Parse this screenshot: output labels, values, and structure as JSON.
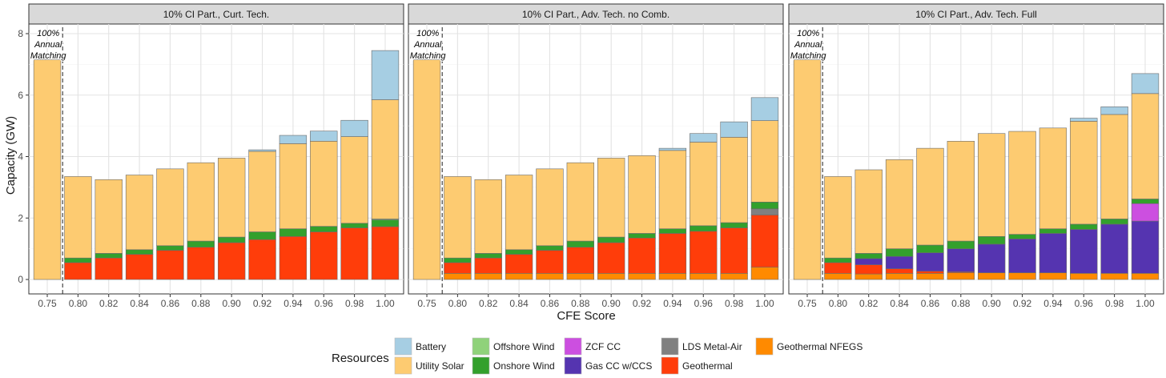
{
  "chart_data": {
    "type": "bar",
    "stacked": true,
    "xlabel": "CFE Score",
    "ylabel": "Capacity (GW)",
    "ylim": [
      0,
      8.6
    ],
    "yticks": [
      "0",
      "2",
      "4",
      "6",
      "8"
    ],
    "categories": [
      "0.75",
      "0.80",
      "0.82",
      "0.84",
      "0.86",
      "0.88",
      "0.90",
      "0.92",
      "0.94",
      "0.96",
      "0.98",
      "1.00"
    ],
    "annotation": [
      "100%",
      "Annual",
      "Matching"
    ],
    "legend": {
      "title": "Resources",
      "items": [
        {
          "name": "Battery",
          "color": "#a6cee3"
        },
        {
          "name": "Utility Solar",
          "color": "#fdcb71"
        },
        {
          "name": "Offshore Wind",
          "color": "#8fd27a"
        },
        {
          "name": "Onshore Wind",
          "color": "#33a02c"
        },
        {
          "name": "ZCF CC",
          "color": "#cc4fe0"
        },
        {
          "name": "Gas CC w/CCS",
          "color": "#5534b0"
        },
        {
          "name": "LDS Metal-Air",
          "color": "#808080"
        },
        {
          "name": "Geothermal",
          "color": "#ff3d0a"
        },
        {
          "name": "Geothermal NFEGS",
          "color": "#ff8a00"
        }
      ]
    },
    "panels": [
      {
        "title": "10% CI Part., Curt. Tech.",
        "stacks": [
          [
            [
              "Utility Solar",
              7.15
            ]
          ],
          [
            [
              "Geothermal",
              0.55
            ],
            [
              "Onshore Wind",
              0.15
            ],
            [
              "Utility Solar",
              2.65
            ]
          ],
          [
            [
              "Geothermal",
              0.7
            ],
            [
              "Onshore Wind",
              0.15
            ],
            [
              "Utility Solar",
              2.4
            ]
          ],
          [
            [
              "Geothermal",
              0.82
            ],
            [
              "Onshore Wind",
              0.15
            ],
            [
              "Utility Solar",
              2.43
            ]
          ],
          [
            [
              "Geothermal",
              0.95
            ],
            [
              "Onshore Wind",
              0.15
            ],
            [
              "Utility Solar",
              2.5
            ]
          ],
          [
            [
              "Geothermal",
              1.05
            ],
            [
              "Onshore Wind",
              0.2
            ],
            [
              "Utility Solar",
              2.55
            ]
          ],
          [
            [
              "Geothermal",
              1.2
            ],
            [
              "Onshore Wind",
              0.18
            ],
            [
              "Utility Solar",
              2.57
            ]
          ],
          [
            [
              "Geothermal",
              1.3
            ],
            [
              "Onshore Wind",
              0.25
            ],
            [
              "Utility Solar",
              2.62
            ],
            [
              "Battery",
              0.05
            ]
          ],
          [
            [
              "Geothermal",
              1.4
            ],
            [
              "Onshore Wind",
              0.25
            ],
            [
              "Utility Solar",
              2.77
            ],
            [
              "Battery",
              0.27
            ]
          ],
          [
            [
              "Geothermal",
              1.55
            ],
            [
              "Onshore Wind",
              0.18
            ],
            [
              "Utility Solar",
              2.77
            ],
            [
              "Battery",
              0.33
            ]
          ],
          [
            [
              "Geothermal",
              1.68
            ],
            [
              "Onshore Wind",
              0.15
            ],
            [
              "Utility Solar",
              2.82
            ],
            [
              "Battery",
              0.53
            ]
          ],
          [
            [
              "Geothermal",
              1.72
            ],
            [
              "Onshore Wind",
              0.22
            ],
            [
              "Offshore Wind",
              0.03
            ],
            [
              "Utility Solar",
              3.88
            ],
            [
              "Battery",
              1.6
            ]
          ]
        ]
      },
      {
        "title": "10% CI Part., Adv. Tech. no Comb.",
        "stacks": [
          [
            [
              "Utility Solar",
              7.15
            ]
          ],
          [
            [
              "Geothermal NFEGS",
              0.2
            ],
            [
              "Geothermal",
              0.35
            ],
            [
              "Onshore Wind",
              0.15
            ],
            [
              "Utility Solar",
              2.65
            ]
          ],
          [
            [
              "Geothermal NFEGS",
              0.2
            ],
            [
              "Geothermal",
              0.5
            ],
            [
              "Onshore Wind",
              0.15
            ],
            [
              "Utility Solar",
              2.4
            ]
          ],
          [
            [
              "Geothermal NFEGS",
              0.2
            ],
            [
              "Geothermal",
              0.62
            ],
            [
              "Onshore Wind",
              0.15
            ],
            [
              "Utility Solar",
              2.43
            ]
          ],
          [
            [
              "Geothermal NFEGS",
              0.2
            ],
            [
              "Geothermal",
              0.75
            ],
            [
              "Onshore Wind",
              0.15
            ],
            [
              "Utility Solar",
              2.5
            ]
          ],
          [
            [
              "Geothermal NFEGS",
              0.2
            ],
            [
              "Geothermal",
              0.85
            ],
            [
              "Onshore Wind",
              0.2
            ],
            [
              "Utility Solar",
              2.55
            ]
          ],
          [
            [
              "Geothermal NFEGS",
              0.2
            ],
            [
              "Geothermal",
              1.0
            ],
            [
              "Onshore Wind",
              0.18
            ],
            [
              "Utility Solar",
              2.57
            ]
          ],
          [
            [
              "Geothermal NFEGS",
              0.2
            ],
            [
              "Geothermal",
              1.15
            ],
            [
              "Onshore Wind",
              0.15
            ],
            [
              "Utility Solar",
              2.53
            ]
          ],
          [
            [
              "Geothermal NFEGS",
              0.2
            ],
            [
              "Geothermal",
              1.3
            ],
            [
              "Onshore Wind",
              0.15
            ],
            [
              "Utility Solar",
              2.55
            ],
            [
              "Battery",
              0.07
            ]
          ],
          [
            [
              "Geothermal NFEGS",
              0.2
            ],
            [
              "Geothermal",
              1.37
            ],
            [
              "Onshore Wind",
              0.18
            ],
            [
              "Utility Solar",
              2.72
            ],
            [
              "Battery",
              0.28
            ]
          ],
          [
            [
              "Geothermal NFEGS",
              0.2
            ],
            [
              "Geothermal",
              1.48
            ],
            [
              "Onshore Wind",
              0.17
            ],
            [
              "Utility Solar",
              2.78
            ],
            [
              "Battery",
              0.5
            ]
          ],
          [
            [
              "Geothermal NFEGS",
              0.4
            ],
            [
              "Geothermal",
              1.7
            ],
            [
              "LDS Metal-Air",
              0.2
            ],
            [
              "Onshore Wind",
              0.22
            ],
            [
              "Utility Solar",
              2.65
            ],
            [
              "Battery",
              0.75
            ]
          ]
        ]
      },
      {
        "title": "10% CI Part., Adv. Tech. Full",
        "stacks": [
          [
            [
              "Utility Solar",
              7.15
            ]
          ],
          [
            [
              "Geothermal NFEGS",
              0.2
            ],
            [
              "Geothermal",
              0.35
            ],
            [
              "Onshore Wind",
              0.15
            ],
            [
              "Utility Solar",
              2.65
            ]
          ],
          [
            [
              "Geothermal NFEGS",
              0.18
            ],
            [
              "Geothermal",
              0.3
            ],
            [
              "Gas CC w/CCS",
              0.2
            ],
            [
              "Onshore Wind",
              0.17
            ],
            [
              "Utility Solar",
              2.72
            ]
          ],
          [
            [
              "Geothermal NFEGS",
              0.2
            ],
            [
              "Geothermal",
              0.15
            ],
            [
              "Gas CC w/CCS",
              0.4
            ],
            [
              "Onshore Wind",
              0.25
            ],
            [
              "Utility Solar",
              2.9
            ]
          ],
          [
            [
              "Geothermal NFEGS",
              0.2
            ],
            [
              "Geothermal",
              0.07
            ],
            [
              "Gas CC w/CCS",
              0.6
            ],
            [
              "Onshore Wind",
              0.25
            ],
            [
              "Utility Solar",
              3.15
            ]
          ],
          [
            [
              "Geothermal NFEGS",
              0.22
            ],
            [
              "Geothermal",
              0.03
            ],
            [
              "Gas CC w/CCS",
              0.75
            ],
            [
              "Onshore Wind",
              0.25
            ],
            [
              "Utility Solar",
              3.25
            ]
          ],
          [
            [
              "Geothermal NFEGS",
              0.22
            ],
            [
              "Gas CC w/CCS",
              0.93
            ],
            [
              "Onshore Wind",
              0.25
            ],
            [
              "Utility Solar",
              3.35
            ]
          ],
          [
            [
              "Geothermal NFEGS",
              0.22
            ],
            [
              "Gas CC w/CCS",
              1.1
            ],
            [
              "Onshore Wind",
              0.15
            ],
            [
              "Utility Solar",
              3.35
            ]
          ],
          [
            [
              "Geothermal NFEGS",
              0.22
            ],
            [
              "Gas CC w/CCS",
              1.28
            ],
            [
              "Onshore Wind",
              0.15
            ],
            [
              "Utility Solar",
              3.28
            ]
          ],
          [
            [
              "Geothermal NFEGS",
              0.2
            ],
            [
              "Gas CC w/CCS",
              1.43
            ],
            [
              "Onshore Wind",
              0.17
            ],
            [
              "Utility Solar",
              3.35
            ],
            [
              "Battery",
              0.1
            ]
          ],
          [
            [
              "Geothermal NFEGS",
              0.2
            ],
            [
              "Gas CC w/CCS",
              1.6
            ],
            [
              "Onshore Wind",
              0.17
            ],
            [
              "Utility Solar",
              3.4
            ],
            [
              "Battery",
              0.25
            ]
          ],
          [
            [
              "Geothermal NFEGS",
              0.2
            ],
            [
              "Gas CC w/CCS",
              1.7
            ],
            [
              "ZCF CC",
              0.57
            ],
            [
              "Onshore Wind",
              0.15
            ],
            [
              "Utility Solar",
              3.43
            ],
            [
              "Battery",
              0.65
            ]
          ]
        ]
      }
    ]
  }
}
